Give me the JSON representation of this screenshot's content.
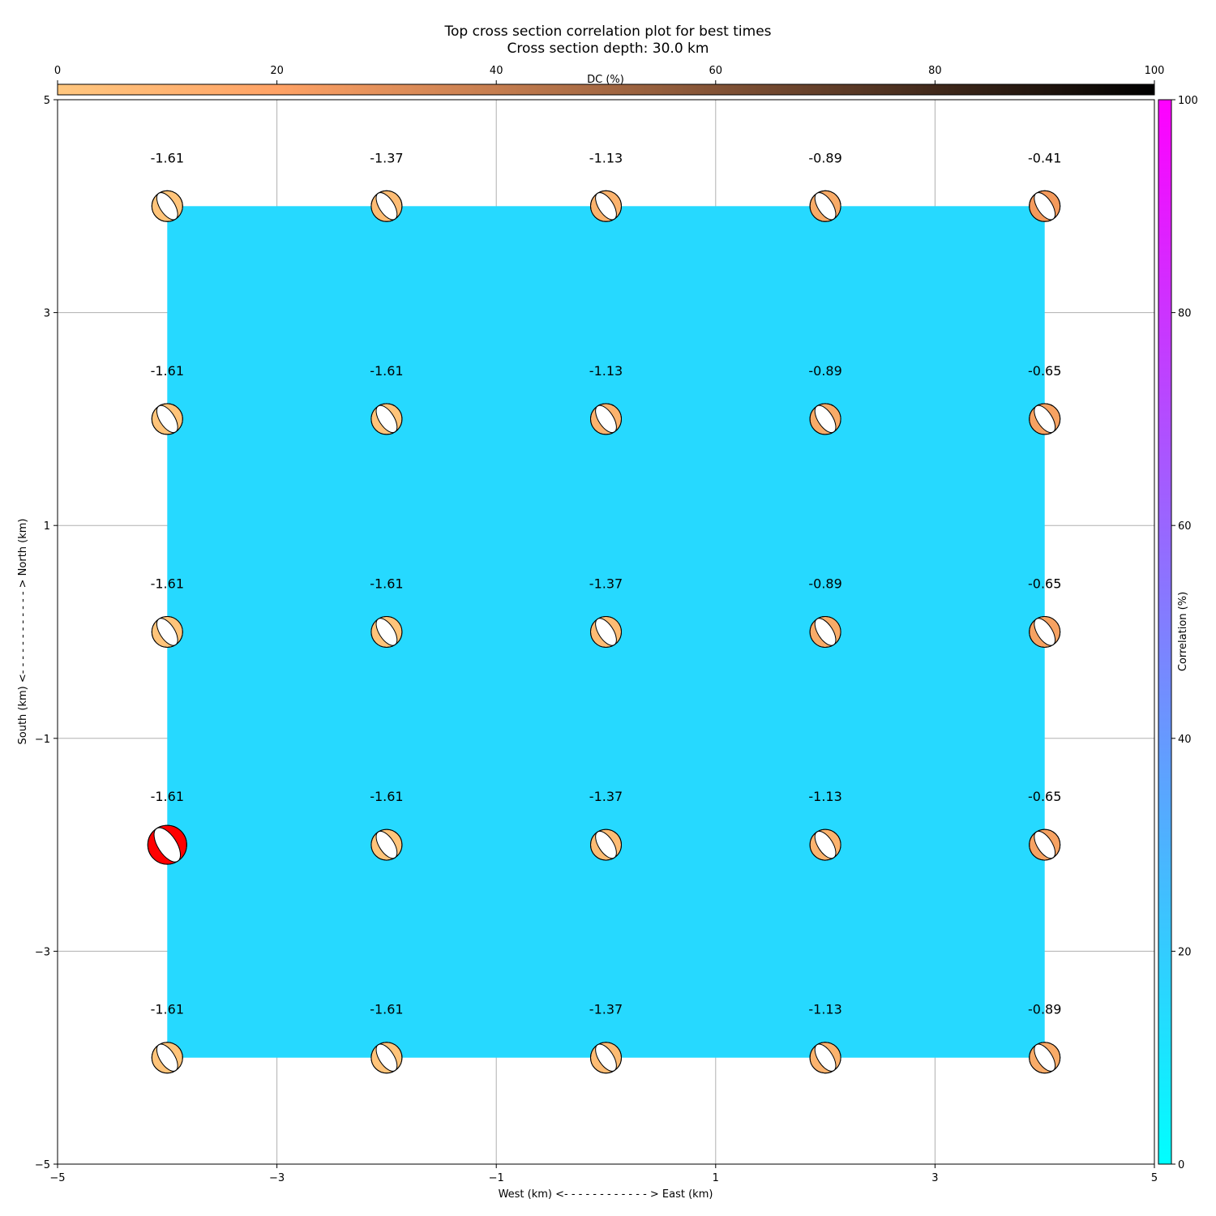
{
  "chart_data": {
    "type": "heatmap",
    "title": "Top cross section correlation plot for best times",
    "subtitle": "Cross section depth: 30.0 km",
    "xlabel": "West (km) <- - - - - - - - - - - - > East (km)",
    "ylabel": "South (km) <- - - - - - - - - - - - > North (km)",
    "xlim": [
      -5,
      5
    ],
    "ylim": [
      -5,
      5
    ],
    "xticks": [
      "-5",
      "-3",
      "-1",
      "1",
      "3",
      "5"
    ],
    "yticks": [
      "-5",
      "-3",
      "-1",
      "1",
      "3",
      "5"
    ],
    "grid": true,
    "correlation_field": {
      "x": [
        -4,
        4
      ],
      "y": [
        -4,
        4
      ],
      "value": 16,
      "color": "#26d9ff"
    },
    "dc_colorbar": {
      "label": "DC (%)",
      "ticks": [
        "0",
        "20",
        "40",
        "60",
        "80",
        "100"
      ],
      "range": [
        0,
        100
      ],
      "position": "top"
    },
    "correlation_colorbar": {
      "label": "Correlation (%)",
      "ticks": [
        "0",
        "20",
        "40",
        "60",
        "80",
        "100"
      ],
      "range": [
        0,
        100
      ],
      "position": "right"
    },
    "x_positions": [
      -4,
      -2,
      0,
      2,
      4
    ],
    "y_positions": [
      4,
      2,
      0,
      -2,
      -4
    ],
    "values": [
      [
        -1.61,
        -1.37,
        -1.13,
        -0.89,
        -0.41
      ],
      [
        -1.61,
        -1.61,
        -1.13,
        -0.89,
        -0.65
      ],
      [
        -1.61,
        -1.61,
        -1.37,
        -0.89,
        -0.65
      ],
      [
        -1.61,
        -1.61,
        -1.37,
        -1.13,
        -0.65
      ],
      [
        -1.61,
        -1.61,
        -1.37,
        -1.13,
        -0.89
      ]
    ],
    "labels": [
      [
        "-1.61",
        "-1.37",
        "-1.13",
        "-0.89",
        "-0.41"
      ],
      [
        "-1.61",
        "-1.61",
        "-1.13",
        "-0.89",
        "-0.65"
      ],
      [
        "-1.61",
        "-1.61",
        "-1.37",
        "-0.89",
        "-0.65"
      ],
      [
        "-1.61",
        "-1.61",
        "-1.37",
        "-1.13",
        "-0.65"
      ],
      [
        "-1.61",
        "-1.61",
        "-1.37",
        "-1.13",
        "-0.89"
      ]
    ],
    "best_solution": {
      "x": -4,
      "y": -2
    },
    "colors": {
      "field": "#26d9ff",
      "best": "#ff0000",
      "grid": "#b0b0b0"
    }
  }
}
